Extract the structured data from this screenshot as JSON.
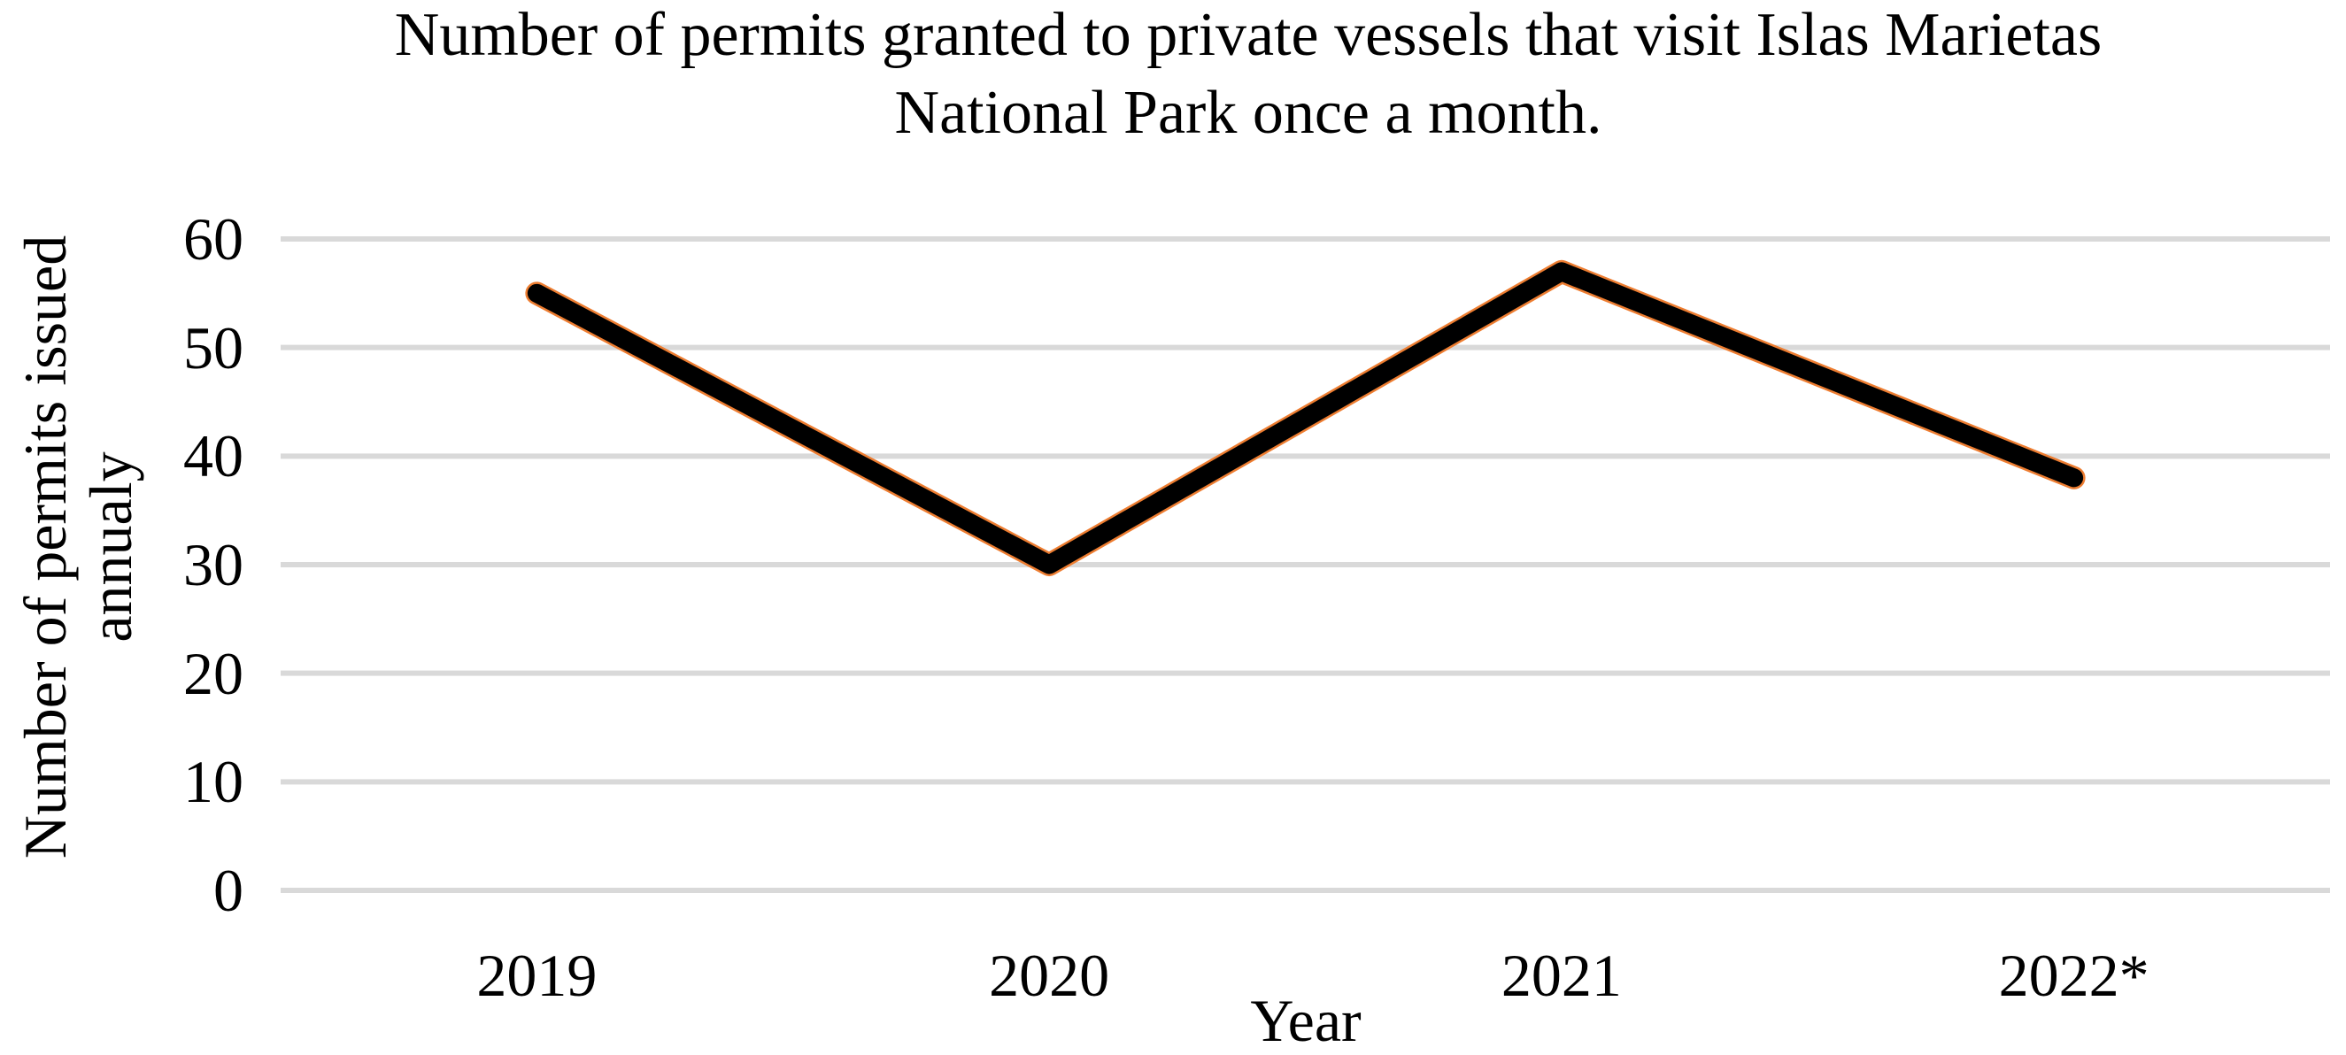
{
  "chart_data": {
    "type": "line",
    "title": "Number of permits granted to private vessels that visit Islas Marietas National Park once a month.",
    "title_lines": [
      "Number of permits granted to private vessels that visit Islas Marietas",
      "National Park once a month."
    ],
    "categories": [
      "2019",
      "2020",
      "2021",
      "2022*"
    ],
    "values": [
      55,
      30,
      57,
      38
    ],
    "xlabel": "Year",
    "ylabel": "Number of permits issued annualy",
    "ylabel_lines": [
      "Number of permits issued",
      "annualy"
    ],
    "ylim": [
      0,
      60
    ],
    "yticks": [
      0,
      10,
      20,
      30,
      40,
      50,
      60
    ],
    "grid": true,
    "legend": "none",
    "colors": {
      "line": "#000000",
      "line_edge": "#ED7D31",
      "gridline": "#D9D9D9",
      "text": "#000000",
      "background": "#FFFFFF"
    }
  }
}
